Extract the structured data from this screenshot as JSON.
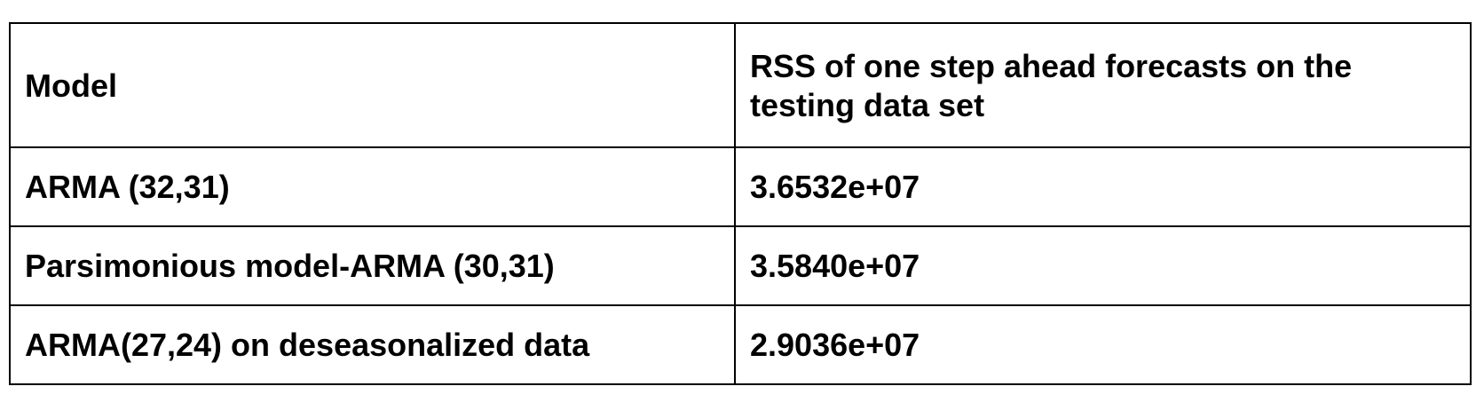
{
  "table": {
    "headers": [
      "Model",
      "RSS of one step ahead forecasts on the testing data set"
    ],
    "rows": [
      [
        "ARMA (32,31)",
        "3.6532e+07"
      ],
      [
        "Parsimonious model-ARMA (30,31)",
        "3.5840e+07"
      ],
      [
        "ARMA(27,24) on deseasonalized data",
        "2.9036e+07"
      ]
    ]
  }
}
